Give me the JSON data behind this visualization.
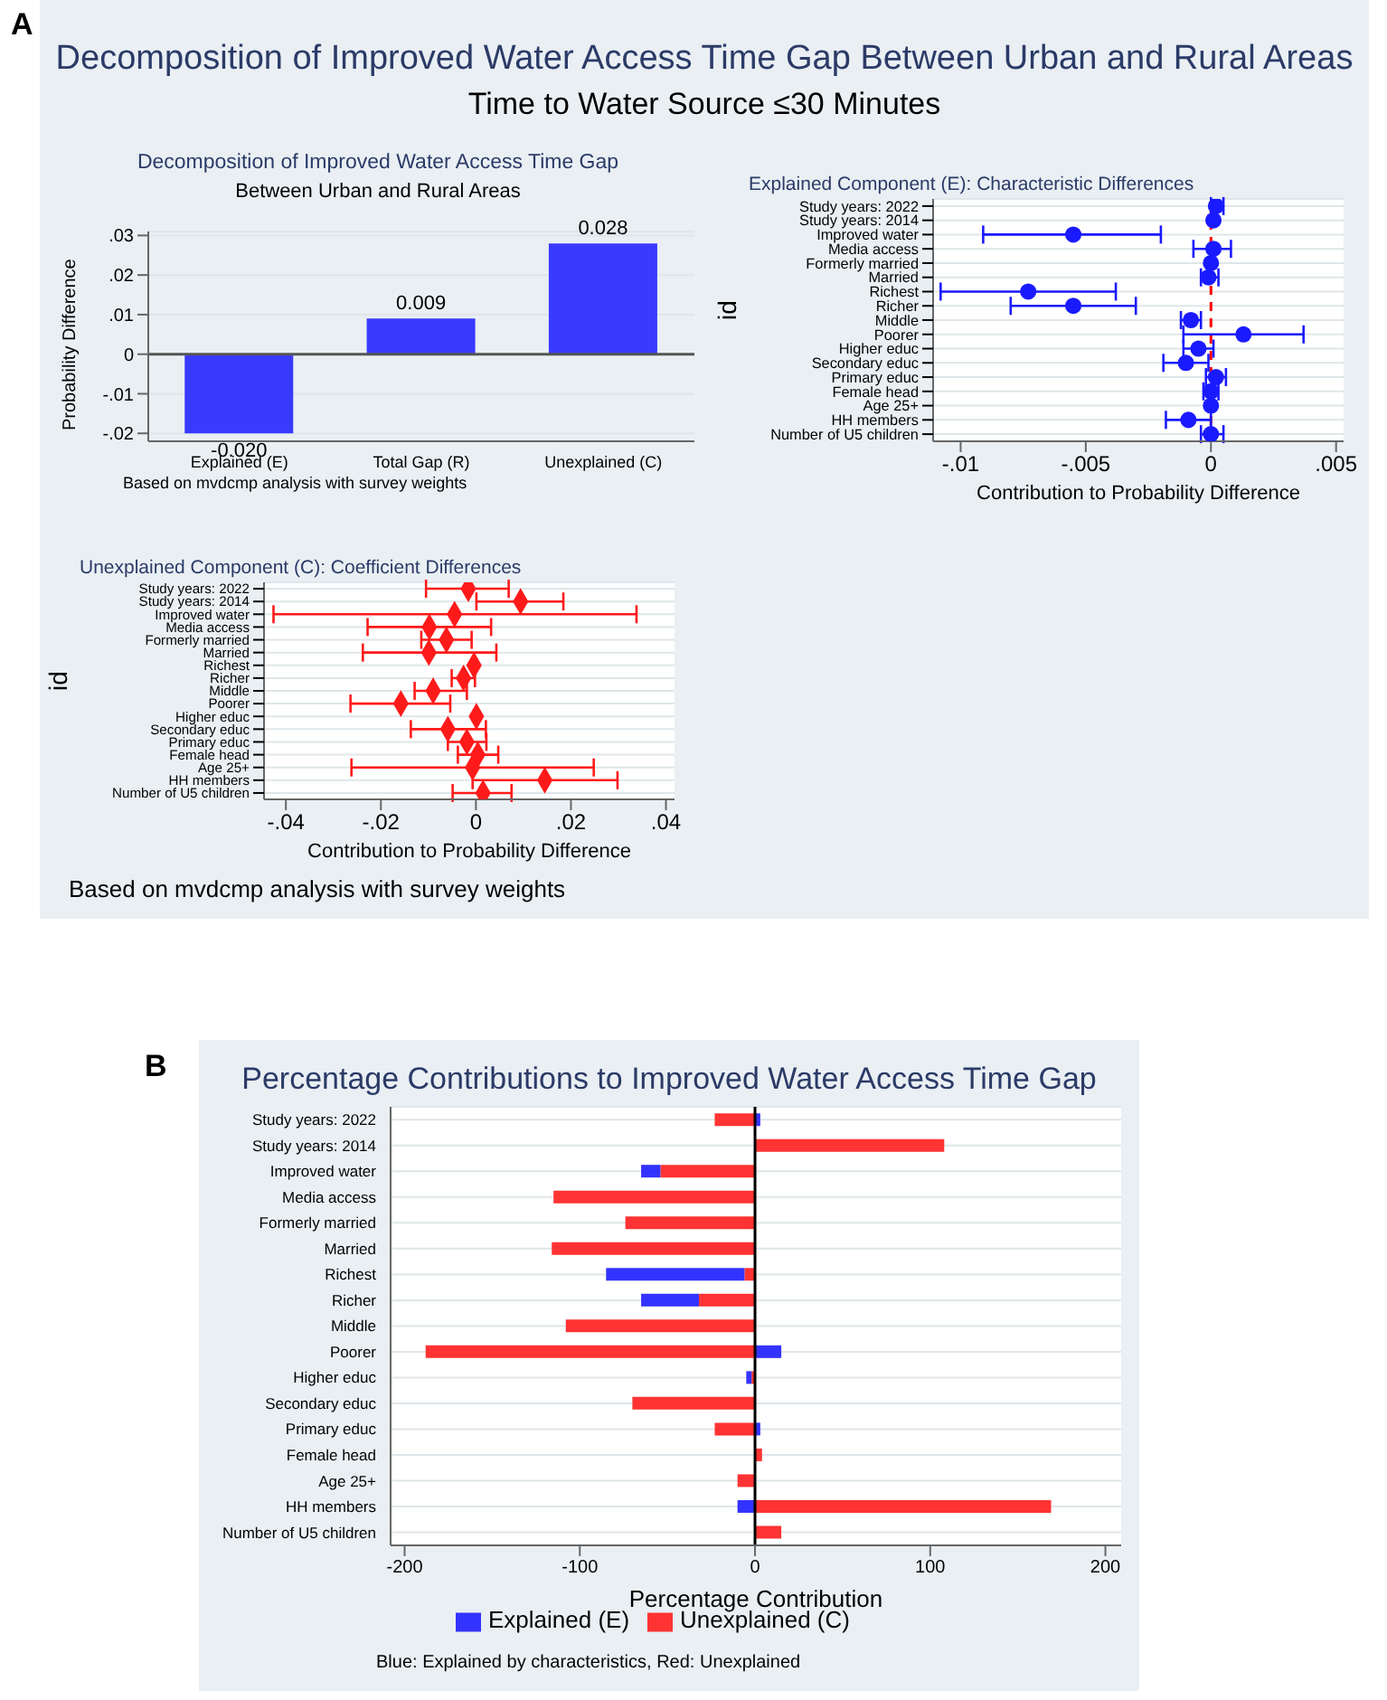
{
  "chart_data": [
    {
      "type": "other",
      "title": "Decomposition of Improved Water Access Time Gap Between Urban and Rural Areas",
      "subtitle": "Time to Water Source ≤30 Minutes",
      "annotations": [
        "A",
        "Based on mvdcmp analysis with survey weights"
      ]
    },
    {
      "type": "bar",
      "title": "Decomposition of Improved Water Access Time Gap",
      "subtitle": "Between Urban and Rural Areas",
      "ylabel": "Probability Difference",
      "categories": [
        "Explained (E)",
        "Total Gap (R)",
        "Unexplained (C)"
      ],
      "values": [
        -0.02,
        0.009,
        0.028
      ],
      "value_labels": [
        "-0.020",
        "0.009",
        "0.028"
      ],
      "color": "#3a3aff",
      "ylim": [
        -0.022,
        0.031
      ],
      "yticks": [
        {
          "value": -0.02,
          "label": "-.02"
        },
        {
          "value": -0.01,
          "label": "-.01"
        },
        0,
        {
          "value": 0.01,
          "label": ".01"
        },
        {
          "value": 0.02,
          "label": ".02"
        },
        {
          "value": 0.03,
          "label": ".03"
        }
      ],
      "grid": "y",
      "annotations": [
        "Based on mvdcmp analysis with survey weights"
      ]
    },
    {
      "type": "scatter",
      "orientation": "horizontal",
      "title": "Explained Component (E): Characteristic Differences",
      "xlabel": "Contribution to Probability Difference",
      "ylabel": "id",
      "categories": [
        "Study years: 2022",
        "Study years: 2014",
        "Improved water",
        "Media access",
        "Formerly married",
        "Married",
        "Richest",
        "Richer",
        "Middle",
        "Poorer",
        "Higher educ",
        "Secondary educ",
        "Primary educ",
        "Female head",
        "Age 25+",
        "HH members",
        "Number of U5 children"
      ],
      "values": [
        0.0002,
        0.0001,
        -0.0055,
        0.0001,
        0,
        -0.0001,
        -0.0073,
        -0.0055,
        -0.0008,
        0.0013,
        -0.0005,
        -0.001,
        0.0002,
        0,
        0,
        -0.0009,
        0
      ],
      "errors": [
        [
          0,
          0.0005
        ],
        null,
        [
          -0.0091,
          -0.002
        ],
        [
          -0.0007,
          0.0008
        ],
        null,
        [
          -0.0004,
          0.0003
        ],
        [
          -0.0108,
          -0.0038
        ],
        [
          -0.008,
          -0.003
        ],
        [
          -0.0012,
          -0.0004
        ],
        [
          -0.0011,
          0.0037
        ],
        [
          -0.0011,
          0.0001
        ],
        [
          -0.0019,
          -0.0001
        ],
        [
          -0.0002,
          0.0006
        ],
        [
          -0.0003,
          0.0003
        ],
        null,
        [
          -0.0018,
          0
        ],
        [
          -0.0004,
          0.0005
        ]
      ],
      "color": "#1a1aff",
      "marker": "circle",
      "xlim": [
        -0.0111,
        0.0053
      ],
      "xticks": [
        {
          "value": -0.01,
          "label": "-.01"
        },
        {
          "value": -0.005,
          "label": "-.005"
        },
        0,
        {
          "value": 0.005,
          "label": ".005"
        }
      ],
      "grid": "y",
      "ref_lines": [
        {
          "axis": "x",
          "value": 0,
          "color": "#ff0000",
          "line_style": "dashed"
        }
      ]
    },
    {
      "type": "scatter",
      "orientation": "horizontal",
      "title": "Unexplained Component (C): Coefficient Differences",
      "xlabel": "Contribution to Probability Difference",
      "ylabel": "id",
      "categories": [
        "Study years: 2022",
        "Study years: 2014",
        "Improved water",
        "Media access",
        "Formerly married",
        "Married",
        "Richest",
        "Richer",
        "Middle",
        "Poorer",
        "Higher educ",
        "Secondary educ",
        "Primary educ",
        "Female head",
        "Age 25+",
        "HH members",
        "Number of U5 children"
      ],
      "values": [
        -0.0016,
        0.0094,
        -0.0045,
        -0.0098,
        -0.0062,
        -0.0099,
        -0.0004,
        -0.0026,
        -0.009,
        -0.0158,
        0.0001,
        -0.0059,
        -0.0019,
        0.0004,
        -0.0007,
        0.0145,
        0.0015
      ],
      "errors": [
        [
          -0.0105,
          0.0069
        ],
        [
          0.0001,
          0.0184
        ],
        [
          -0.0426,
          0.0338
        ],
        [
          -0.0228,
          0.0032
        ],
        [
          -0.0115,
          -0.0009
        ],
        [
          -0.0238,
          0.0043
        ],
        null,
        [
          -0.0051,
          -0.0002
        ],
        [
          -0.0129,
          -0.0019
        ],
        [
          -0.0264,
          -0.0054
        ],
        null,
        [
          -0.0137,
          0.0021
        ],
        [
          -0.0059,
          0.0022
        ],
        [
          -0.0038,
          0.0047
        ],
        [
          -0.0262,
          0.0248
        ],
        [
          -0.0007,
          0.0298
        ],
        [
          -0.0049,
          0.0075
        ]
      ],
      "color": "#ff1a1a",
      "marker": "diamond",
      "xlim": [
        -0.0446,
        0.0418
      ],
      "xticks": [
        {
          "value": -0.04,
          "label": "-.04"
        },
        {
          "value": -0.02,
          "label": "-.02"
        },
        0,
        {
          "value": 0.02,
          "label": ".02"
        },
        {
          "value": 0.04,
          "label": ".04"
        }
      ],
      "grid": "y"
    },
    {
      "type": "bar",
      "orientation": "horizontal",
      "stacked": true,
      "title": "Percentage Contributions to Improved Water Access Time Gap",
      "xlabel": "Percentage Contribution",
      "categories": [
        "Study years: 2022",
        "Study years: 2014",
        "Improved water",
        "Media access",
        "Formerly married",
        "Married",
        "Richest",
        "Richer",
        "Middle",
        "Poorer",
        "Higher educ",
        "Secondary educ",
        "Primary educ",
        "Female head",
        "Age 25+",
        "HH members",
        "Number of U5 children"
      ],
      "series": [
        {
          "name": "Unexplained (C)",
          "color": "#ff3333",
          "values": [
            -23,
            108,
            -54,
            -115,
            -74,
            -116,
            -6,
            -32,
            -108,
            -188,
            -2,
            -70,
            -23,
            4,
            -10,
            169,
            15
          ]
        },
        {
          "name": "Explained (E)",
          "color": "#3333ff",
          "values": [
            3,
            null,
            -11,
            null,
            null,
            null,
            -79,
            -33,
            null,
            15,
            -3,
            null,
            3,
            null,
            null,
            -10,
            null
          ]
        }
      ],
      "xlim": [
        -208,
        209
      ],
      "xticks": [
        -200,
        -100,
        0,
        100,
        200
      ],
      "grid": "y",
      "legend": "bottom",
      "ref_lines": [
        {
          "axis": "x",
          "value": 0,
          "color": "#000000"
        }
      ],
      "annotations": [
        "B",
        "Blue: Explained by characteristics, Red: Unexplained"
      ]
    }
  ]
}
